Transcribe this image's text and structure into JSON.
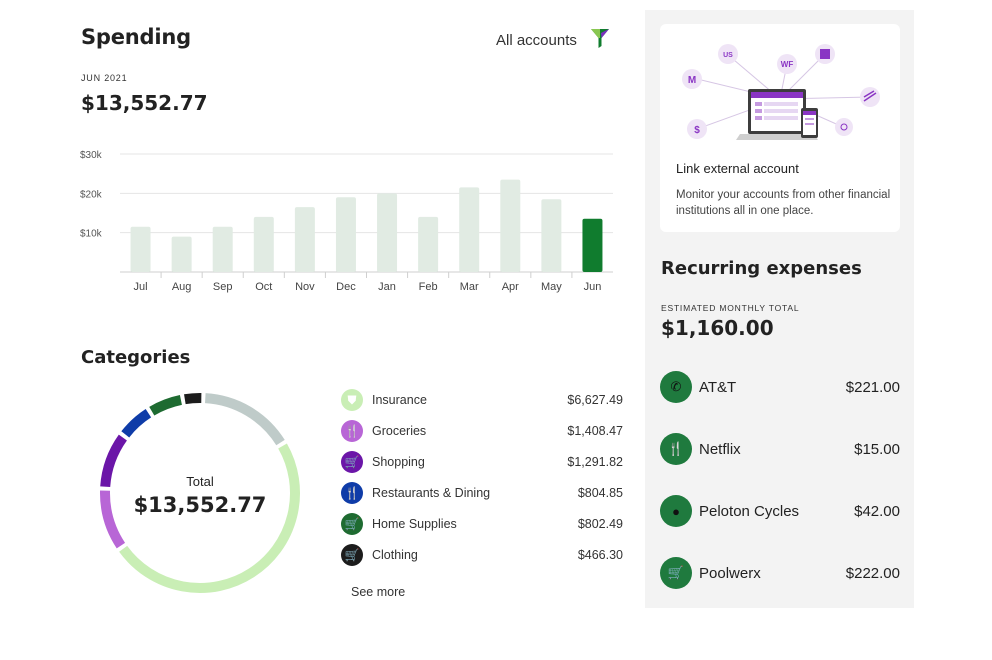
{
  "spending": {
    "title": "Spending",
    "period": "JUN 2021",
    "total": "$13,552.77",
    "filter_label": "All accounts",
    "filter_icon": "filter-icon"
  },
  "chart_data": {
    "type": "bar",
    "categories": [
      "Jul",
      "Aug",
      "Sep",
      "Oct",
      "Nov",
      "Dec",
      "Jan",
      "Feb",
      "Mar",
      "Apr",
      "May",
      "Jun"
    ],
    "values": [
      11500,
      9000,
      11500,
      14000,
      16500,
      19000,
      20000,
      14000,
      21500,
      23500,
      18500,
      13552.77
    ],
    "yticks": [
      "$10k",
      "$20k",
      "$30k"
    ],
    "ylim": [
      0,
      30000
    ],
    "grid": true,
    "colors": {
      "bar": "#e1ebe3",
      "highlight": "#107c2e"
    }
  },
  "categories": {
    "title": "Categories",
    "total_label": "Total",
    "total_value": "$13,552.77",
    "see_more": "See more",
    "items": [
      {
        "name": "Insurance",
        "value": "$6,627.49",
        "amount": 6627.49,
        "color": "#c9eeb5",
        "icon": "shield-icon",
        "glyph": "⛊",
        "glyph_color": "#ffffff"
      },
      {
        "name": "Groceries",
        "value": "$1,408.47",
        "amount": 1408.47,
        "color": "#b866d6",
        "icon": "utensils-icon",
        "glyph": "🍴",
        "glyph_color": "#ffffff"
      },
      {
        "name": "Shopping",
        "value": "$1,291.82",
        "amount": 1291.82,
        "color": "#6b16a8",
        "icon": "cart-icon",
        "glyph": "🛒",
        "glyph_color": "#ffffff"
      },
      {
        "name": "Restaurants & Dining",
        "value": "$804.85",
        "amount": 804.85,
        "color": "#0f3ca8",
        "icon": "utensils-icon",
        "glyph": "🍴",
        "glyph_color": "#ffffff"
      },
      {
        "name": "Home Supplies",
        "value": "$802.49",
        "amount": 802.49,
        "color": "#1e6b31",
        "icon": "cart-icon",
        "glyph": "🛒",
        "glyph_color": "#ffffff"
      },
      {
        "name": "Clothing",
        "value": "$466.30",
        "amount": 466.3,
        "color": "#1c1c1c",
        "icon": "cart-icon",
        "glyph": "🛒",
        "glyph_color": "#ffffff"
      }
    ],
    "remainder_color": "#bfcbc9",
    "remainder_amount": 2151.35
  },
  "link_account": {
    "title": "Link external account",
    "description": "Monitor your accounts from other financial institutions all in one place.",
    "bubbles": [
      "M",
      "US",
      "WF",
      "$"
    ]
  },
  "recurring": {
    "title": "Recurring expenses",
    "estimate_label": "ESTIMATED MONTHLY TOTAL",
    "estimate_value": "$1,160.00",
    "items": [
      {
        "name": "AT&T",
        "amount": "$221.00",
        "icon": "phone-icon",
        "glyph": "✆"
      },
      {
        "name": "Netflix",
        "amount": "$15.00",
        "icon": "utensils-icon",
        "glyph": "🍴"
      },
      {
        "name": "Peloton Cycles",
        "amount": "$42.00",
        "icon": "bike-icon",
        "glyph": "●"
      },
      {
        "name": "Poolwerx",
        "amount": "$222.00",
        "icon": "cart-icon",
        "glyph": "🛒"
      }
    ]
  }
}
